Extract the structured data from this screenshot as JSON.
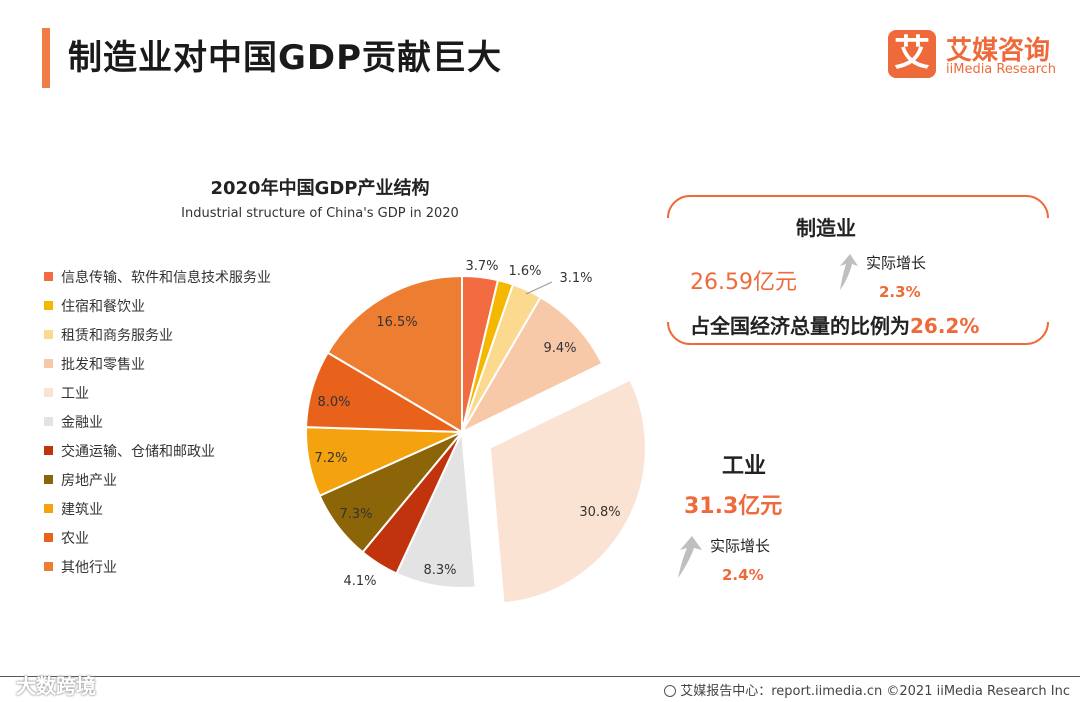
{
  "header": {
    "title": "制造业对中国GDP贡献巨大"
  },
  "logo": {
    "mark": "艾",
    "cn": "艾媒咨询",
    "en": "iiMedia Research"
  },
  "chart_data": {
    "type": "pie",
    "title": "2020年中国GDP产业结构",
    "subtitle": "Industrial structure of China's GDP in 2020",
    "unit": "%",
    "slices": [
      {
        "label": "信息传输、软件和信息技术服务业",
        "value": 3.7,
        "display": "3.7%",
        "color": "#f26b41"
      },
      {
        "label": "住宿和餐饮业",
        "value": 1.6,
        "display": "1.6%",
        "color": "#f5b800"
      },
      {
        "label": "租赁和商务服务业",
        "value": 3.1,
        "display": "3.1%",
        "color": "#fbd98f"
      },
      {
        "label": "批发和零售业",
        "value": 9.4,
        "display": "9.4%",
        "color": "#f7c9a8"
      },
      {
        "label": "工业",
        "value": 30.8,
        "display": "30.8%",
        "color": "#fbe3d4",
        "exploded": true
      },
      {
        "label": "金融业",
        "value": 8.3,
        "display": "8.3%",
        "color": "#e3e3e3"
      },
      {
        "label": "交通运输、仓储和邮政业",
        "value": 4.1,
        "display": "4.1%",
        "color": "#c0330d"
      },
      {
        "label": "房地产业",
        "value": 7.3,
        "display": "7.3%",
        "color": "#8b6508"
      },
      {
        "label": "建筑业",
        "value": 7.2,
        "display": "7.2%",
        "color": "#f4a20d"
      },
      {
        "label": "农业",
        "value": 8.0,
        "display": "8.0%",
        "color": "#e8621c"
      },
      {
        "label": "其他行业",
        "value": 16.5,
        "display": "16.5%",
        "color": "#ed7d31"
      }
    ]
  },
  "callouts": {
    "manufacturing": {
      "title": "制造业",
      "value": "26.59亿元",
      "growth_label": "实际增长",
      "growth_value": "2.3%",
      "share_text": "占全国经济总量的比例为",
      "share_value": "26.2%"
    },
    "industry": {
      "title": "工业",
      "value": "31.3亿元",
      "growth_label": "实际增长",
      "growth_value": "2.4%"
    }
  },
  "footer": {
    "watermark": "大数跨境",
    "source": "艾媒报告中心：report.iimedia.cn  ©2021  iiMedia Research  Inc"
  },
  "colors": {
    "accent": "#ef6a3a",
    "bar": "#ef7d45",
    "arrow": "#bfbfbf"
  }
}
